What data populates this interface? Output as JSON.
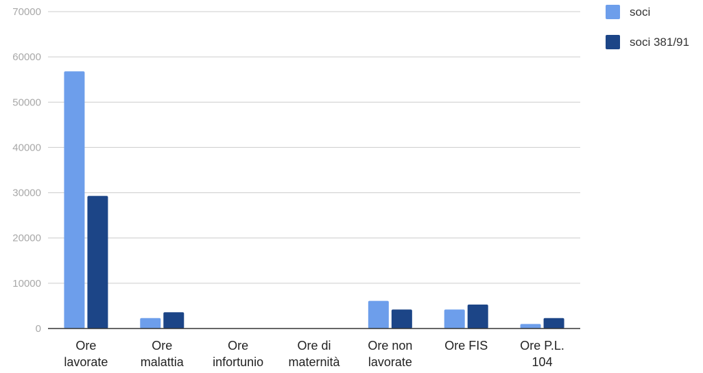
{
  "chart_data": {
    "type": "bar",
    "categories": [
      [
        "Ore",
        "lavorate"
      ],
      [
        "Ore",
        "malattia"
      ],
      [
        "Ore",
        "infortunio"
      ],
      [
        "Ore di",
        "maternità"
      ],
      [
        "Ore non",
        "lavorate"
      ],
      [
        "Ore FIS"
      ],
      [
        "Ore P.L.",
        "104"
      ]
    ],
    "series": [
      {
        "name": "soci",
        "color": "#6d9eeb",
        "values": [
          56800,
          2300,
          0,
          0,
          6100,
          4200,
          1000
        ]
      },
      {
        "name": "soci 381/91",
        "color": "#1c4587",
        "values": [
          29300,
          3600,
          0,
          0,
          4200,
          5300,
          2300
        ]
      }
    ],
    "ylim": [
      0,
      70000
    ],
    "yticks": [
      0,
      10000,
      20000,
      30000,
      40000,
      50000,
      60000,
      70000
    ],
    "grid": true,
    "legend_position": "right",
    "title": "",
    "xlabel": "",
    "ylabel": ""
  }
}
